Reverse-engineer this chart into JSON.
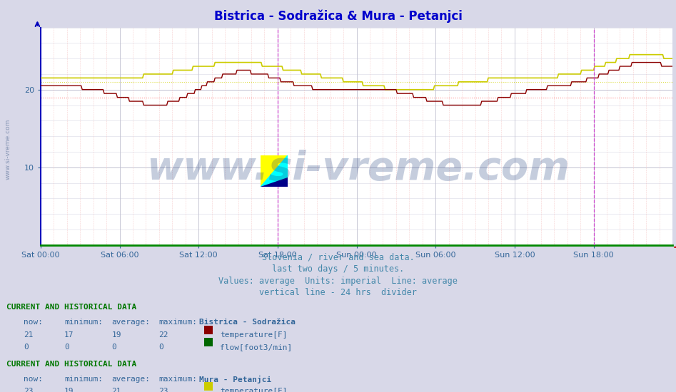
{
  "title": "Bistrica - Sodražica & Mura - Petanjci",
  "title_color": "#0000cc",
  "bg_color": "#d8d8e8",
  "plot_bg_color": "#ffffff",
  "grid_color_major": "#c0c0d0",
  "xlim_hours": 48,
  "ylim": [
    0,
    28
  ],
  "xlabel_ticks": [
    "Sat 00:00",
    "Sat 06:00",
    "Sat 12:00",
    "Sat 18:00",
    "Sun 00:00",
    "Sun 06:00",
    "Sun 12:00",
    "Sun 18:00"
  ],
  "xlabel_tick_positions": [
    0,
    6,
    12,
    18,
    24,
    30,
    36,
    42
  ],
  "watermark": "www.si-vreme.com",
  "watermark_color": "#1a3a7a",
  "subtitle_lines": [
    "Slovenia / river and sea data.",
    "last two days / 5 minutes.",
    "Values: average  Units: imperial  Line: average",
    "vertical line - 24 hrs  divider"
  ],
  "subtitle_color": "#4488aa",
  "bistrica_temp_color": "#8b0000",
  "bistrica_flow_color": "#006600",
  "mura_temp_color": "#cccc00",
  "mura_flow_color": "#cc00cc",
  "bistrica_avg_line_color": "#ff8888",
  "mura_avg_line_color": "#dddd44",
  "vline_color": "#cc44cc",
  "vline_x": 18,
  "end_vline_x": 42,
  "axis_color": "#0000bb",
  "tick_color": "#336699",
  "table_header_color": "#007700",
  "table_text_color": "#336699",
  "legend_color": "#336699",
  "bistrica_avg": 19,
  "mura_avg": 21
}
